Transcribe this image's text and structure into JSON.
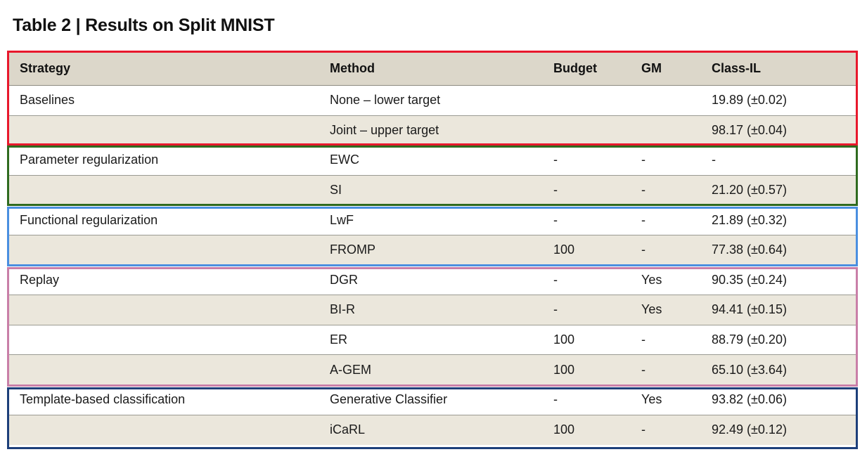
{
  "title": "Table 2 | Results on Split MNIST",
  "columns": {
    "strategy": "Strategy",
    "method": "Method",
    "budget": "Budget",
    "gm": "GM",
    "classil": "Class-IL"
  },
  "rows": [
    {
      "strategy": "Baselines",
      "method": "None – lower target",
      "budget": "",
      "gm": "",
      "classil": "19.89 (±0.02)"
    },
    {
      "strategy": "",
      "method": "Joint – upper target",
      "budget": "",
      "gm": "",
      "classil": "98.17 (±0.04)"
    },
    {
      "strategy": "Parameter regularization",
      "method": "EWC",
      "budget": "-",
      "gm": "-",
      "classil": "-"
    },
    {
      "strategy": "",
      "method": "SI",
      "budget": "-",
      "gm": "-",
      "classil": "21.20 (±0.57)"
    },
    {
      "strategy": "Functional regularization",
      "method": "LwF",
      "budget": "-",
      "gm": "-",
      "classil": "21.89 (±0.32)"
    },
    {
      "strategy": "",
      "method": "FROMP",
      "budget": "100",
      "gm": "-",
      "classil": "77.38 (±0.64)"
    },
    {
      "strategy": "Replay",
      "method": "DGR",
      "budget": "-",
      "gm": "Yes",
      "classil": "90.35 (±0.24)"
    },
    {
      "strategy": "",
      "method": "BI-R",
      "budget": "-",
      "gm": "Yes",
      "classil": "94.41 (±0.15)"
    },
    {
      "strategy": "",
      "method": "ER",
      "budget": "100",
      "gm": "-",
      "classil": "88.79 (±0.20)"
    },
    {
      "strategy": "",
      "method": "A-GEM",
      "budget": "100",
      "gm": "-",
      "classil": "65.10 (±3.64)"
    },
    {
      "strategy": "Template-based classification",
      "method": "Generative Classifier",
      "budget": "-",
      "gm": "Yes",
      "classil": "93.82 (±0.06)"
    },
    {
      "strategy": "",
      "method": "iCaRL",
      "budget": "100",
      "gm": "-",
      "classil": "92.49 (±0.12)"
    }
  ],
  "groups": [
    {
      "name": "baselines",
      "color": "#e8182c"
    },
    {
      "name": "parameter-regularization",
      "color": "#2f6b1f"
    },
    {
      "name": "functional-regularization",
      "color": "#4a8fe0"
    },
    {
      "name": "replay",
      "color": "#c97fa8"
    },
    {
      "name": "template-based-classification",
      "color": "#1d3f7a"
    }
  ]
}
